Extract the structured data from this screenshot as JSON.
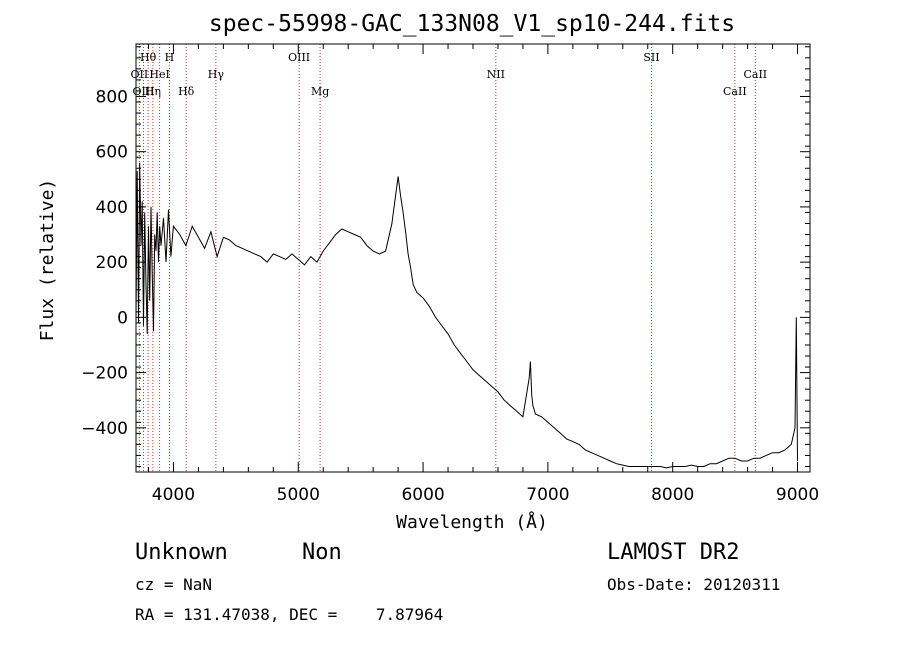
{
  "chart_data": {
    "type": "line",
    "title": "spec-55998-GAC_133N08_V1_sp10-244.fits",
    "xlabel": "Wavelength (Å)",
    "ylabel": "Flux (relative)",
    "xlim": [
      3700,
      9100
    ],
    "ylim": [
      -560,
      990
    ],
    "xticks": [
      4000,
      5000,
      6000,
      7000,
      8000,
      9000
    ],
    "yticks": [
      -400,
      -200,
      0,
      200,
      400,
      600,
      800
    ],
    "grid": false,
    "series": [
      {
        "values_x": [
          3700,
          3710,
          3720,
          3730,
          3740,
          3750,
          3760,
          3770,
          3780,
          3790,
          3800,
          3810,
          3820,
          3830,
          3840,
          3850,
          3860,
          3870,
          3880,
          3890,
          3900,
          3920,
          3940,
          3960,
          3980,
          4000,
          4050,
          4100,
          4150,
          4200,
          4250,
          4300,
          4350,
          4400,
          4450,
          4500,
          4550,
          4600,
          4650,
          4700,
          4750,
          4800,
          4850,
          4900,
          4950,
          5000,
          5050,
          5100,
          5150,
          5200,
          5250,
          5300,
          5350,
          5400,
          5450,
          5500,
          5550,
          5600,
          5650,
          5700,
          5750,
          5800,
          5820,
          5840,
          5860,
          5880,
          5900,
          5920,
          5950,
          6000,
          6050,
          6100,
          6150,
          6200,
          6250,
          6300,
          6350,
          6400,
          6450,
          6500,
          6550,
          6600,
          6650,
          6700,
          6750,
          6800,
          6850,
          6860,
          6870,
          6880,
          6900,
          6950,
          7000,
          7050,
          7100,
          7150,
          7200,
          7250,
          7300,
          7350,
          7400,
          7450,
          7500,
          7550,
          7600,
          7650,
          7700,
          7750,
          7800,
          7850,
          7900,
          7950,
          8000,
          8050,
          8100,
          8150,
          8200,
          8250,
          8300,
          8350,
          8400,
          8450,
          8500,
          8550,
          8600,
          8650,
          8700,
          8750,
          8800,
          8850,
          8900,
          8950,
          8980,
          8990,
          9000
        ],
        "values_y": [
          0,
          530,
          -20,
          560,
          260,
          420,
          -30,
          380,
          120,
          -60,
          330,
          60,
          400,
          160,
          -50,
          300,
          240,
          380,
          200,
          330,
          260,
          360,
          200,
          390,
          220,
          330,
          300,
          260,
          330,
          290,
          250,
          310,
          220,
          290,
          280,
          260,
          250,
          240,
          230,
          220,
          200,
          230,
          220,
          210,
          230,
          210,
          190,
          220,
          200,
          240,
          270,
          300,
          320,
          310,
          300,
          290,
          260,
          240,
          230,
          240,
          340,
          510,
          440,
          380,
          310,
          230,
          180,
          120,
          90,
          70,
          40,
          0,
          -30,
          -60,
          -100,
          -130,
          -160,
          -190,
          -210,
          -230,
          -250,
          -270,
          -300,
          -320,
          -340,
          -360,
          -220,
          -160,
          -280,
          -320,
          -350,
          -360,
          -380,
          -400,
          -420,
          -440,
          -450,
          -460,
          -480,
          -490,
          -500,
          -510,
          -520,
          -530,
          -535,
          -540,
          -540,
          -540,
          -540,
          -540,
          -540,
          -545,
          -540,
          -540,
          -540,
          -535,
          -540,
          -540,
          -530,
          -530,
          -520,
          -510,
          -510,
          -520,
          -520,
          -510,
          -510,
          -500,
          -490,
          -490,
          -480,
          -460,
          -400,
          0,
          -520
        ]
      }
    ],
    "line_labels": [
      {
        "name": "OII",
        "wavelength": 3727,
        "row": 2
      },
      {
        "name": "OIII",
        "wavelength": 3760,
        "row": 3
      },
      {
        "name": "Hθ",
        "wavelength": 3797,
        "row": 1
      },
      {
        "name": "Hη",
        "wavelength": 3835,
        "row": 3
      },
      {
        "name": "HeI",
        "wavelength": 3889,
        "row": 2
      },
      {
        "name": "H",
        "wavelength": 3968,
        "row": 1
      },
      {
        "name": "Hδ",
        "wavelength": 4102,
        "row": 3
      },
      {
        "name": "Hγ",
        "wavelength": 4340,
        "row": 2
      },
      {
        "name": "OIII",
        "wavelength": 5007,
        "row": 1
      },
      {
        "name": "Mg",
        "wavelength": 5175,
        "row": 3
      },
      {
        "name": "NII",
        "wavelength": 6583,
        "row": 2
      },
      {
        "name": "SII",
        "wavelength": 7830,
        "row": 1
      },
      {
        "name": "CaII",
        "wavelength": 8498,
        "row": 3
      },
      {
        "name": "CaII",
        "wavelength": 8662,
        "row": 2
      }
    ]
  },
  "footer": {
    "object_class": "Unknown",
    "subclass": "Non",
    "survey": "LAMOST DR2",
    "cz": "cz = NaN",
    "obs_date": "Obs-Date: 20120311",
    "coords": "RA = 131.47038, DEC =    7.87964"
  },
  "colors": {
    "line_markers": "#c0392b",
    "spectrum": "#000000"
  }
}
